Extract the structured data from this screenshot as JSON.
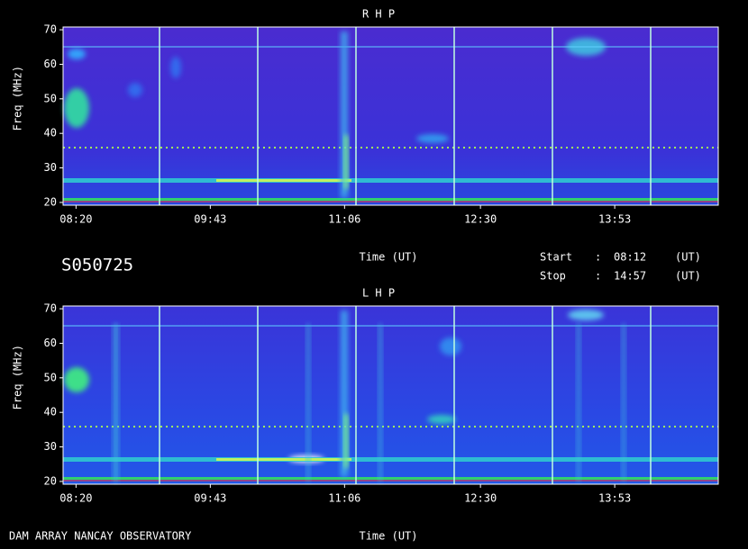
{
  "header": {
    "id": "S050725",
    "start_label": "Start",
    "start_sep": ":",
    "start": "08:12",
    "start_unit": "(UT)",
    "stop_label": "Stop",
    "stop_sep": ":",
    "stop": "14:57",
    "stop_unit": "(UT)"
  },
  "footer": {
    "text": "DAM ARRAY  NANCAY OBSERVATORY"
  },
  "chart_data": [
    {
      "type": "spectrogram",
      "title": "R H P",
      "ylabel": "Freq (MHz)",
      "xlabel": "Time (UT)",
      "ylim": [
        19.2,
        70.8
      ],
      "yticks": [
        20,
        30,
        40,
        50,
        60,
        70
      ],
      "xlim": [
        492,
        897
      ],
      "xticks": [
        {
          "value": 500,
          "label": "08:20"
        },
        {
          "value": 583,
          "label": "09:43"
        },
        {
          "value": 666,
          "label": "11:06"
        },
        {
          "value": 750,
          "label": "12:30"
        },
        {
          "value": 833,
          "label": "13:53"
        }
      ]
    },
    {
      "type": "spectrogram",
      "title": "L H P",
      "ylabel": "Freq (MHz)",
      "xlabel": "Time (UT)",
      "ylim": [
        19.2,
        70.8
      ],
      "yticks": [
        20,
        30,
        40,
        50,
        60,
        70
      ],
      "xlim": [
        492,
        897
      ],
      "xticks": [
        {
          "value": 500,
          "label": "08:20"
        },
        {
          "value": 583,
          "label": "09:43"
        },
        {
          "value": 666,
          "label": "11:06"
        },
        {
          "value": 750,
          "label": "12:30"
        },
        {
          "value": 833,
          "label": "13:53"
        }
      ]
    }
  ]
}
